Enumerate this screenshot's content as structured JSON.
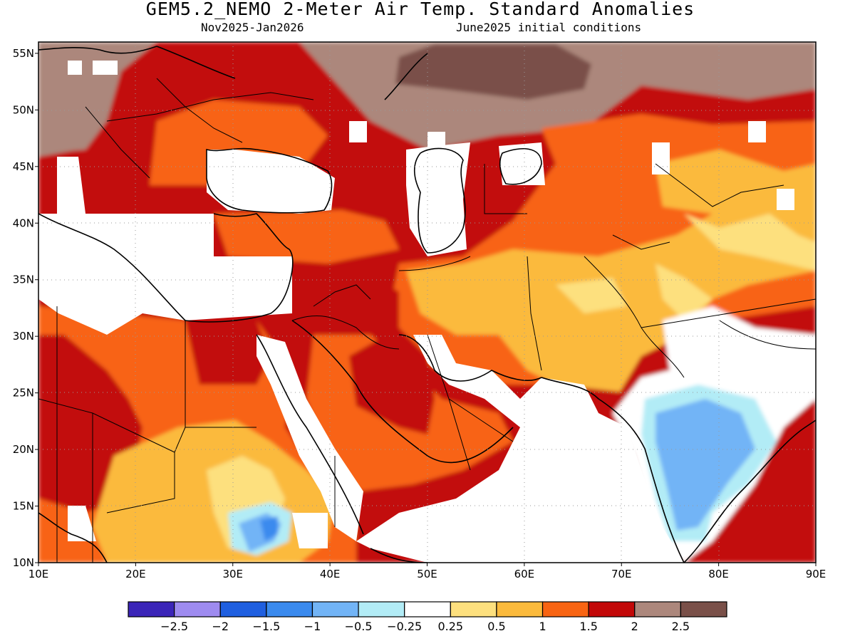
{
  "title": "GEM5.2_NEMO 2-Meter Air Temp. Standard Anomalies",
  "subtitle_left": "Nov2025-Jan2026",
  "subtitle_right": "June2025 initial conditions",
  "map": {
    "lon_range": [
      10,
      90
    ],
    "lat_range": [
      10,
      56
    ],
    "lat_ticks": [
      {
        "value": 55,
        "label": "55N"
      },
      {
        "value": 50,
        "label": "50N"
      },
      {
        "value": 45,
        "label": "45N"
      },
      {
        "value": 40,
        "label": "40N"
      },
      {
        "value": 35,
        "label": "35N"
      },
      {
        "value": 30,
        "label": "30N"
      },
      {
        "value": 25,
        "label": "25N"
      },
      {
        "value": 20,
        "label": "20N"
      },
      {
        "value": 15,
        "label": "15N"
      },
      {
        "value": 10,
        "label": "10N"
      }
    ],
    "lon_ticks": [
      {
        "value": 10,
        "label": "10E"
      },
      {
        "value": 20,
        "label": "20E"
      },
      {
        "value": 30,
        "label": "30E"
      },
      {
        "value": 40,
        "label": "40E"
      },
      {
        "value": 50,
        "label": "50E"
      },
      {
        "value": 60,
        "label": "60E"
      },
      {
        "value": 70,
        "label": "70E"
      },
      {
        "value": 80,
        "label": "80E"
      },
      {
        "value": 90,
        "label": "90E"
      }
    ]
  },
  "colorbar": {
    "colors": [
      "#3b25b8",
      "#9e8bf0",
      "#1f5fe0",
      "#3a8aee",
      "#72b4f6",
      "#b2ecf6",
      "#ffffff",
      "#fde07e",
      "#fbba3c",
      "#f86412",
      "#c20808",
      "#ac877c",
      "#7a5049"
    ],
    "labels": [
      "-2.5",
      "-2",
      "-1.5",
      "-1",
      "-0.5",
      "-0.25",
      "0.25",
      "0.5",
      "1",
      "1.5",
      "2",
      "2.5"
    ]
  }
}
